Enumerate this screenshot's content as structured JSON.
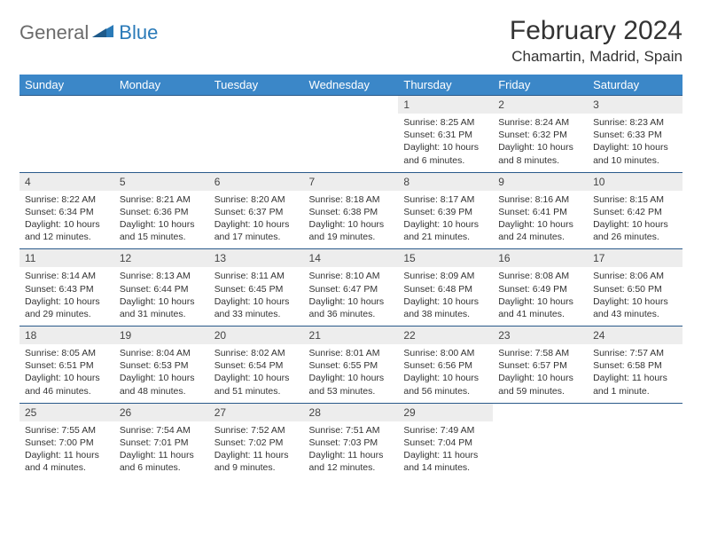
{
  "logo": {
    "part1": "General",
    "part2": "Blue"
  },
  "title": "February 2024",
  "location": "Chamartin, Madrid, Spain",
  "colors": {
    "header_bg": "#3b87c8",
    "header_text": "#ffffff",
    "daynum_bg": "#ededed",
    "border": "#2a5a8a",
    "logo_gray": "#6b6b6b",
    "logo_blue": "#2a7ab8"
  },
  "weekdays": [
    "Sunday",
    "Monday",
    "Tuesday",
    "Wednesday",
    "Thursday",
    "Friday",
    "Saturday"
  ],
  "weeks": [
    [
      null,
      null,
      null,
      null,
      {
        "n": "1",
        "sr": "8:25 AM",
        "ss": "6:31 PM",
        "dl": "10 hours and 6 minutes."
      },
      {
        "n": "2",
        "sr": "8:24 AM",
        "ss": "6:32 PM",
        "dl": "10 hours and 8 minutes."
      },
      {
        "n": "3",
        "sr": "8:23 AM",
        "ss": "6:33 PM",
        "dl": "10 hours and 10 minutes."
      }
    ],
    [
      {
        "n": "4",
        "sr": "8:22 AM",
        "ss": "6:34 PM",
        "dl": "10 hours and 12 minutes."
      },
      {
        "n": "5",
        "sr": "8:21 AM",
        "ss": "6:36 PM",
        "dl": "10 hours and 15 minutes."
      },
      {
        "n": "6",
        "sr": "8:20 AM",
        "ss": "6:37 PM",
        "dl": "10 hours and 17 minutes."
      },
      {
        "n": "7",
        "sr": "8:18 AM",
        "ss": "6:38 PM",
        "dl": "10 hours and 19 minutes."
      },
      {
        "n": "8",
        "sr": "8:17 AM",
        "ss": "6:39 PM",
        "dl": "10 hours and 21 minutes."
      },
      {
        "n": "9",
        "sr": "8:16 AM",
        "ss": "6:41 PM",
        "dl": "10 hours and 24 minutes."
      },
      {
        "n": "10",
        "sr": "8:15 AM",
        "ss": "6:42 PM",
        "dl": "10 hours and 26 minutes."
      }
    ],
    [
      {
        "n": "11",
        "sr": "8:14 AM",
        "ss": "6:43 PM",
        "dl": "10 hours and 29 minutes."
      },
      {
        "n": "12",
        "sr": "8:13 AM",
        "ss": "6:44 PM",
        "dl": "10 hours and 31 minutes."
      },
      {
        "n": "13",
        "sr": "8:11 AM",
        "ss": "6:45 PM",
        "dl": "10 hours and 33 minutes."
      },
      {
        "n": "14",
        "sr": "8:10 AM",
        "ss": "6:47 PM",
        "dl": "10 hours and 36 minutes."
      },
      {
        "n": "15",
        "sr": "8:09 AM",
        "ss": "6:48 PM",
        "dl": "10 hours and 38 minutes."
      },
      {
        "n": "16",
        "sr": "8:08 AM",
        "ss": "6:49 PM",
        "dl": "10 hours and 41 minutes."
      },
      {
        "n": "17",
        "sr": "8:06 AM",
        "ss": "6:50 PM",
        "dl": "10 hours and 43 minutes."
      }
    ],
    [
      {
        "n": "18",
        "sr": "8:05 AM",
        "ss": "6:51 PM",
        "dl": "10 hours and 46 minutes."
      },
      {
        "n": "19",
        "sr": "8:04 AM",
        "ss": "6:53 PM",
        "dl": "10 hours and 48 minutes."
      },
      {
        "n": "20",
        "sr": "8:02 AM",
        "ss": "6:54 PM",
        "dl": "10 hours and 51 minutes."
      },
      {
        "n": "21",
        "sr": "8:01 AM",
        "ss": "6:55 PM",
        "dl": "10 hours and 53 minutes."
      },
      {
        "n": "22",
        "sr": "8:00 AM",
        "ss": "6:56 PM",
        "dl": "10 hours and 56 minutes."
      },
      {
        "n": "23",
        "sr": "7:58 AM",
        "ss": "6:57 PM",
        "dl": "10 hours and 59 minutes."
      },
      {
        "n": "24",
        "sr": "7:57 AM",
        "ss": "6:58 PM",
        "dl": "11 hours and 1 minute."
      }
    ],
    [
      {
        "n": "25",
        "sr": "7:55 AM",
        "ss": "7:00 PM",
        "dl": "11 hours and 4 minutes."
      },
      {
        "n": "26",
        "sr": "7:54 AM",
        "ss": "7:01 PM",
        "dl": "11 hours and 6 minutes."
      },
      {
        "n": "27",
        "sr": "7:52 AM",
        "ss": "7:02 PM",
        "dl": "11 hours and 9 minutes."
      },
      {
        "n": "28",
        "sr": "7:51 AM",
        "ss": "7:03 PM",
        "dl": "11 hours and 12 minutes."
      },
      {
        "n": "29",
        "sr": "7:49 AM",
        "ss": "7:04 PM",
        "dl": "11 hours and 14 minutes."
      },
      null,
      null
    ]
  ],
  "labels": {
    "sunrise": "Sunrise: ",
    "sunset": "Sunset: ",
    "daylight": "Daylight: "
  }
}
